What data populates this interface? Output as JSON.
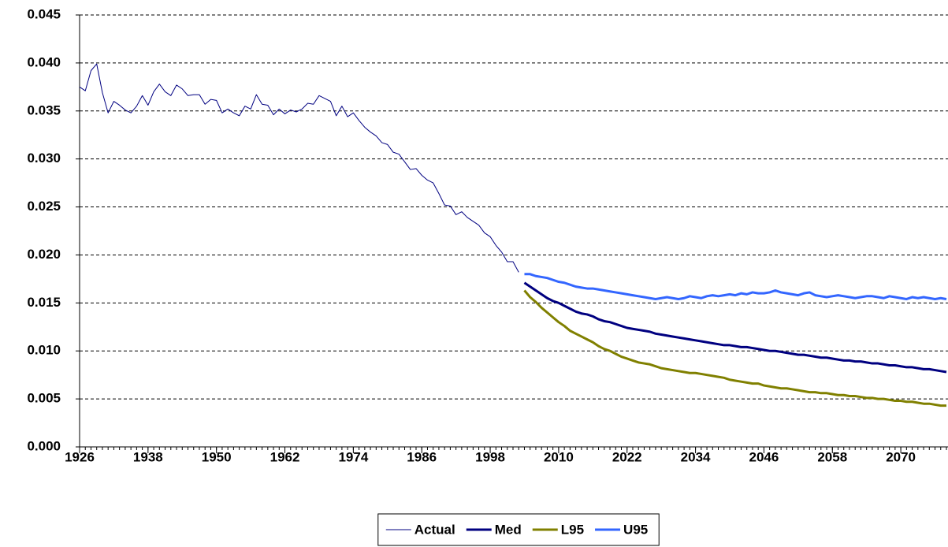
{
  "chart_data": {
    "type": "line",
    "xlim": [
      1926,
      2078
    ],
    "xticks": [
      1926,
      1938,
      1950,
      1962,
      1974,
      1986,
      1998,
      2010,
      2022,
      2034,
      2046,
      2058,
      2070
    ],
    "ylim": [
      0,
      0.045
    ],
    "yticks": [
      {
        "value": 0,
        "label": "0.000"
      },
      {
        "value": 0.005,
        "label": "0.005"
      },
      {
        "value": 0.01,
        "label": "0.010"
      },
      {
        "value": 0.015,
        "label": "0.015"
      },
      {
        "value": 0.02,
        "label": "0.020"
      },
      {
        "value": 0.025,
        "label": "0.025"
      },
      {
        "value": 0.03,
        "label": "0.030"
      },
      {
        "value": 0.035,
        "label": "0.035"
      },
      {
        "value": 0.04,
        "label": "0.040"
      },
      {
        "value": 0.045,
        "label": "0.045"
      }
    ],
    "grid": true,
    "legend": "bottom",
    "series": [
      {
        "name": "Actual",
        "color": "#000080",
        "width": 1,
        "x": [
          1926,
          1927,
          1928,
          1929,
          1930,
          1931,
          1932,
          1933,
          1934,
          1935,
          1936,
          1937,
          1938,
          1939,
          1940,
          1941,
          1942,
          1943,
          1944,
          1945,
          1946,
          1947,
          1948,
          1949,
          1950,
          1951,
          1952,
          1953,
          1954,
          1955,
          1956,
          1957,
          1958,
          1959,
          1960,
          1961,
          1962,
          1963,
          1964,
          1965,
          1966,
          1967,
          1968,
          1969,
          1970,
          1971,
          1972,
          1973,
          1974,
          1975,
          1976,
          1977,
          1978,
          1979,
          1980,
          1981,
          1982,
          1983,
          1984,
          1985,
          1986,
          1987,
          1988,
          1989,
          1990,
          1991,
          1992,
          1993,
          1994,
          1995,
          1996,
          1997,
          1998,
          1999,
          2000,
          2001,
          2002,
          2003
        ],
        "values": [
          0.0375,
          0.0371,
          0.0392,
          0.0399,
          0.0369,
          0.0348,
          0.036,
          0.0356,
          0.0351,
          0.0348,
          0.0355,
          0.0366,
          0.0356,
          0.037,
          0.0378,
          0.037,
          0.0366,
          0.0377,
          0.0373,
          0.0366,
          0.0367,
          0.0367,
          0.0357,
          0.0362,
          0.0361,
          0.0348,
          0.0352,
          0.0348,
          0.0345,
          0.0355,
          0.0352,
          0.0367,
          0.0357,
          0.0356,
          0.0346,
          0.0352,
          0.0347,
          0.0351,
          0.0349,
          0.0352,
          0.0358,
          0.0357,
          0.0366,
          0.0363,
          0.036,
          0.0345,
          0.0355,
          0.0344,
          0.0348,
          0.034,
          0.0333,
          0.0328,
          0.0324,
          0.0317,
          0.0315,
          0.0307,
          0.0305,
          0.0297,
          0.0289,
          0.029,
          0.0283,
          0.0278,
          0.0275,
          0.0264,
          0.0252,
          0.0251,
          0.0242,
          0.0245,
          0.0239,
          0.0235,
          0.0231,
          0.0223,
          0.0219,
          0.021,
          0.0203,
          0.0193,
          0.0193,
          0.0182
        ]
      },
      {
        "name": "Med",
        "color": "#000080",
        "width": 3,
        "x": [
          2004,
          2005,
          2006,
          2007,
          2008,
          2009,
          2010,
          2011,
          2012,
          2013,
          2014,
          2015,
          2016,
          2017,
          2018,
          2019,
          2020,
          2021,
          2022,
          2023,
          2024,
          2025,
          2026,
          2027,
          2028,
          2029,
          2030,
          2031,
          2032,
          2033,
          2034,
          2035,
          2036,
          2037,
          2038,
          2039,
          2040,
          2041,
          2042,
          2043,
          2044,
          2045,
          2046,
          2047,
          2048,
          2049,
          2050,
          2051,
          2052,
          2053,
          2054,
          2055,
          2056,
          2057,
          2058,
          2059,
          2060,
          2061,
          2062,
          2063,
          2064,
          2065,
          2066,
          2067,
          2068,
          2069,
          2070,
          2071,
          2072,
          2073,
          2074,
          2075,
          2076,
          2077,
          2078
        ],
        "values": [
          0.0171,
          0.0167,
          0.0163,
          0.0159,
          0.0155,
          0.0152,
          0.015,
          0.0147,
          0.0144,
          0.0141,
          0.0139,
          0.0138,
          0.0136,
          0.0133,
          0.0131,
          0.013,
          0.0128,
          0.0126,
          0.0124,
          0.0123,
          0.0122,
          0.0121,
          0.012,
          0.0118,
          0.0117,
          0.0116,
          0.0115,
          0.0114,
          0.0113,
          0.0112,
          0.0111,
          0.011,
          0.0109,
          0.0108,
          0.0107,
          0.0106,
          0.0106,
          0.0105,
          0.0104,
          0.0104,
          0.0103,
          0.0102,
          0.0101,
          0.01,
          0.01,
          0.0099,
          0.0098,
          0.0097,
          0.0096,
          0.0096,
          0.0095,
          0.0094,
          0.0093,
          0.0093,
          0.0092,
          0.0091,
          0.009,
          0.009,
          0.0089,
          0.0089,
          0.0088,
          0.0087,
          0.0087,
          0.0086,
          0.0085,
          0.0085,
          0.0084,
          0.0083,
          0.0083,
          0.0082,
          0.0081,
          0.0081,
          0.008,
          0.0079,
          0.0078
        ]
      },
      {
        "name": "L95",
        "color": "#808000",
        "width": 3,
        "x": [
          2004,
          2005,
          2006,
          2007,
          2008,
          2009,
          2010,
          2011,
          2012,
          2013,
          2014,
          2015,
          2016,
          2017,
          2018,
          2019,
          2020,
          2021,
          2022,
          2023,
          2024,
          2025,
          2026,
          2027,
          2028,
          2029,
          2030,
          2031,
          2032,
          2033,
          2034,
          2035,
          2036,
          2037,
          2038,
          2039,
          2040,
          2041,
          2042,
          2043,
          2044,
          2045,
          2046,
          2047,
          2048,
          2049,
          2050,
          2051,
          2052,
          2053,
          2054,
          2055,
          2056,
          2057,
          2058,
          2059,
          2060,
          2061,
          2062,
          2063,
          2064,
          2065,
          2066,
          2067,
          2068,
          2069,
          2070,
          2071,
          2072,
          2073,
          2074,
          2075,
          2076,
          2077,
          2078
        ],
        "values": [
          0.0163,
          0.0156,
          0.0151,
          0.0145,
          0.014,
          0.0135,
          0.013,
          0.0126,
          0.0121,
          0.0118,
          0.0115,
          0.0112,
          0.0109,
          0.0105,
          0.0102,
          0.01,
          0.0097,
          0.0094,
          0.0092,
          0.009,
          0.0088,
          0.0087,
          0.0086,
          0.0084,
          0.0082,
          0.0081,
          0.008,
          0.0079,
          0.0078,
          0.0077,
          0.0077,
          0.0076,
          0.0075,
          0.0074,
          0.0073,
          0.0072,
          0.007,
          0.0069,
          0.0068,
          0.0067,
          0.0066,
          0.0066,
          0.0064,
          0.0063,
          0.0062,
          0.0061,
          0.0061,
          0.006,
          0.0059,
          0.0058,
          0.0057,
          0.0057,
          0.0056,
          0.0056,
          0.0055,
          0.0054,
          0.0054,
          0.0053,
          0.0053,
          0.0052,
          0.0051,
          0.0051,
          0.005,
          0.005,
          0.0049,
          0.0048,
          0.0048,
          0.0047,
          0.0047,
          0.0046,
          0.0045,
          0.0045,
          0.0044,
          0.0043,
          0.0043
        ]
      },
      {
        "name": "U95",
        "color": "#3366ff",
        "width": 3,
        "x": [
          2004,
          2005,
          2006,
          2007,
          2008,
          2009,
          2010,
          2011,
          2012,
          2013,
          2014,
          2015,
          2016,
          2017,
          2018,
          2019,
          2020,
          2021,
          2022,
          2023,
          2024,
          2025,
          2026,
          2027,
          2028,
          2029,
          2030,
          2031,
          2032,
          2033,
          2034,
          2035,
          2036,
          2037,
          2038,
          2039,
          2040,
          2041,
          2042,
          2043,
          2044,
          2045,
          2046,
          2047,
          2048,
          2049,
          2050,
          2051,
          2052,
          2053,
          2054,
          2055,
          2056,
          2057,
          2058,
          2059,
          2060,
          2061,
          2062,
          2063,
          2064,
          2065,
          2066,
          2067,
          2068,
          2069,
          2070,
          2071,
          2072,
          2073,
          2074,
          2075,
          2076,
          2077,
          2078
        ],
        "values": [
          0.018,
          0.018,
          0.0178,
          0.0177,
          0.0176,
          0.0174,
          0.0172,
          0.0171,
          0.0169,
          0.0167,
          0.0166,
          0.0165,
          0.0165,
          0.0164,
          0.0163,
          0.0162,
          0.0161,
          0.016,
          0.0159,
          0.0158,
          0.0157,
          0.0156,
          0.0155,
          0.0154,
          0.0155,
          0.0156,
          0.0155,
          0.0154,
          0.0155,
          0.0157,
          0.0156,
          0.0155,
          0.0157,
          0.0158,
          0.0157,
          0.0158,
          0.0159,
          0.0158,
          0.016,
          0.0159,
          0.0161,
          0.016,
          0.016,
          0.0161,
          0.0163,
          0.0161,
          0.016,
          0.0159,
          0.0158,
          0.016,
          0.0161,
          0.0158,
          0.0157,
          0.0156,
          0.0157,
          0.0158,
          0.0157,
          0.0156,
          0.0155,
          0.0156,
          0.0157,
          0.0157,
          0.0156,
          0.0155,
          0.0157,
          0.0156,
          0.0155,
          0.0154,
          0.0156,
          0.0155,
          0.0156,
          0.0155,
          0.0154,
          0.0155,
          0.0154
        ]
      }
    ]
  }
}
